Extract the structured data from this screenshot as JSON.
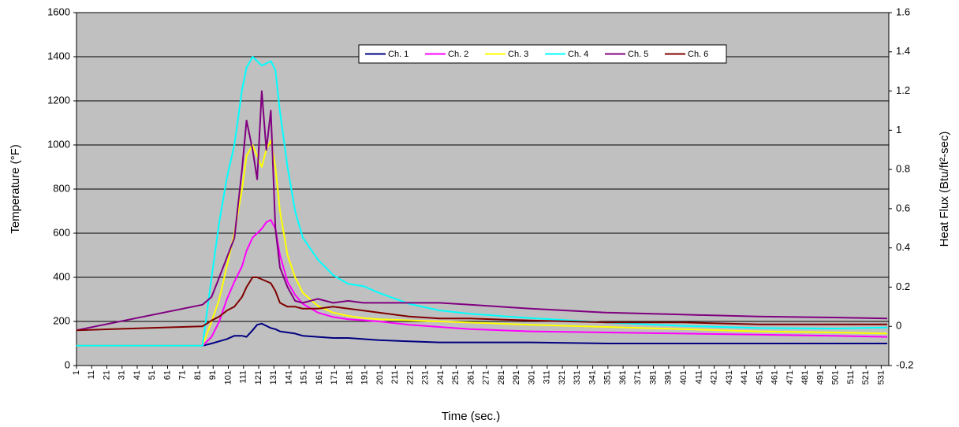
{
  "chart_data": {
    "type": "line",
    "xlabel": "Time (sec.)",
    "ylabel": "Temperature (°F)",
    "y2label": "Heat Flux (Btu/ft²-sec)",
    "x": [
      1,
      84,
      90,
      95,
      100,
      105,
      110,
      113,
      117,
      120,
      123,
      126,
      129,
      132,
      135,
      140,
      145,
      150,
      160,
      170,
      180,
      190,
      200,
      220,
      240,
      260,
      300,
      350,
      400,
      450,
      500,
      535
    ],
    "xlim": [
      1,
      536
    ],
    "xticks": [
      1,
      11,
      21,
      31,
      41,
      51,
      61,
      71,
      81,
      91,
      101,
      111,
      121,
      131,
      141,
      151,
      161,
      171,
      181,
      191,
      201,
      211,
      221,
      231,
      241,
      251,
      261,
      271,
      281,
      291,
      301,
      311,
      321,
      331,
      341,
      351,
      361,
      371,
      381,
      391,
      401,
      411,
      421,
      431,
      441,
      451,
      461,
      471,
      481,
      491,
      501,
      511,
      521,
      531
    ],
    "ylim": [
      0,
      1600
    ],
    "yticks": [
      0,
      200,
      400,
      600,
      800,
      1000,
      1200,
      1400,
      1600
    ],
    "y2lim": [
      -0.2,
      1.6
    ],
    "y2ticks": [
      -0.2,
      0,
      0.2,
      0.4,
      0.6,
      0.8,
      1,
      1.2,
      1.4,
      1.6
    ],
    "grid": true,
    "legend": "top",
    "series": [
      {
        "name": "Ch. 1",
        "color": "#000080",
        "values": [
          90,
          90,
          100,
          110,
          120,
          135,
          135,
          130,
          160,
          185,
          190,
          180,
          170,
          165,
          155,
          150,
          145,
          135,
          130,
          125,
          125,
          120,
          115,
          110,
          105,
          105,
          105,
          100,
          100,
          100,
          100,
          100
        ]
      },
      {
        "name": "Ch. 2",
        "color": "#ff00ff",
        "values": [
          90,
          90,
          130,
          200,
          300,
          380,
          450,
          520,
          580,
          600,
          620,
          650,
          660,
          620,
          500,
          380,
          320,
          280,
          240,
          220,
          210,
          205,
          200,
          185,
          175,
          165,
          155,
          150,
          145,
          140,
          135,
          130
        ]
      },
      {
        "name": "Ch. 3",
        "color": "#ffff00",
        "values": [
          90,
          90,
          200,
          300,
          450,
          600,
          800,
          950,
          1000,
          950,
          900,
          980,
          1020,
          900,
          700,
          500,
          400,
          330,
          270,
          240,
          225,
          215,
          210,
          205,
          200,
          195,
          185,
          175,
          165,
          155,
          150,
          145
        ]
      },
      {
        "name": "Ch. 4",
        "color": "#00ffff",
        "values": [
          90,
          90,
          400,
          650,
          850,
          1000,
          1250,
          1350,
          1400,
          1380,
          1360,
          1370,
          1380,
          1340,
          1150,
          900,
          700,
          580,
          480,
          410,
          370,
          360,
          330,
          280,
          250,
          235,
          215,
          195,
          180,
          170,
          168,
          172
        ]
      },
      {
        "name": "Ch. 5",
        "color": "#800080",
        "axis": "y2",
        "values": [
          -0.02,
          0.11,
          0.15,
          0.25,
          0.35,
          0.45,
          0.8,
          1.05,
          0.9,
          0.75,
          1.2,
          0.9,
          1.1,
          0.5,
          0.3,
          0.2,
          0.13,
          0.12,
          0.14,
          0.12,
          0.13,
          0.12,
          0.12,
          0.12,
          0.12,
          0.11,
          0.09,
          0.07,
          0.06,
          0.05,
          0.045,
          0.04
        ]
      },
      {
        "name": "Ch. 6",
        "color": "#800000",
        "axis": "y2",
        "values": [
          -0.02,
          0,
          0.03,
          0.05,
          0.08,
          0.1,
          0.15,
          0.2,
          0.25,
          0.25,
          0.24,
          0.23,
          0.22,
          0.18,
          0.12,
          0.1,
          0.1,
          0.09,
          0.09,
          0.1,
          0.09,
          0.08,
          0.07,
          0.05,
          0.04,
          0.04,
          0.03,
          0.02,
          0.02,
          0.01,
          0.01,
          0.01
        ]
      }
    ]
  }
}
